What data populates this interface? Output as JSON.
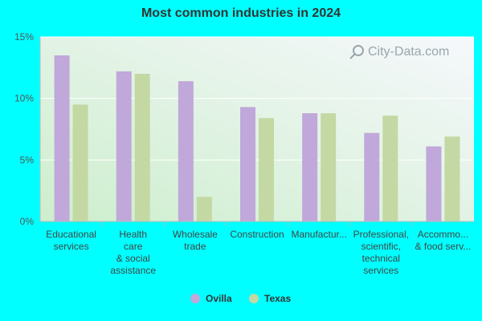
{
  "chart_data": {
    "type": "bar",
    "title": "Most common industries in 2024",
    "xlabel": "",
    "ylabel": "",
    "ylim": [
      0,
      15
    ],
    "yticks": [
      "0%",
      "5%",
      "10%",
      "15%"
    ],
    "ytick_values": [
      0,
      5,
      10,
      15
    ],
    "categories": [
      [
        "Educational",
        "services"
      ],
      [
        "Health",
        "care",
        "& social",
        "assistance"
      ],
      [
        "Wholesale",
        "trade"
      ],
      [
        "Construction"
      ],
      [
        "Manufactur..."
      ],
      [
        "Professional,",
        "scientific,",
        "technical",
        "services"
      ],
      [
        "Accommo...",
        "& food serv..."
      ]
    ],
    "series": [
      {
        "name": "Ovilla",
        "color": "#c0a8da",
        "values": [
          13.5,
          12.2,
          11.4,
          9.3,
          8.8,
          7.2,
          6.1
        ]
      },
      {
        "name": "Texas",
        "color": "#c4d8a4",
        "values": [
          9.5,
          12.0,
          2.0,
          8.4,
          8.8,
          8.6,
          6.9
        ]
      }
    ],
    "legend": "bottom",
    "grid": true
  },
  "watermark": "City-Data.com"
}
